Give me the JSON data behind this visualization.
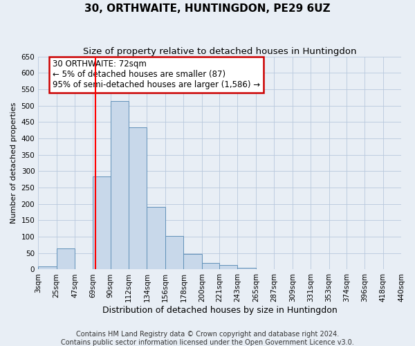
{
  "title": "30, ORTHWAITE, HUNTINGDON, PE29 6UZ",
  "subtitle": "Size of property relative to detached houses in Huntingdon",
  "xlabel": "Distribution of detached houses by size in Huntingdon",
  "ylabel": "Number of detached properties",
  "bin_edges": [
    3,
    25,
    47,
    69,
    90,
    112,
    134,
    156,
    178,
    200,
    221,
    243,
    265,
    287,
    309,
    331,
    353,
    374,
    396,
    418,
    440
  ],
  "bin_labels": [
    "3sqm",
    "25sqm",
    "47sqm",
    "69sqm",
    "90sqm",
    "112sqm",
    "134sqm",
    "156sqm",
    "178sqm",
    "200sqm",
    "221sqm",
    "243sqm",
    "265sqm",
    "287sqm",
    "309sqm",
    "331sqm",
    "353sqm",
    "374sqm",
    "396sqm",
    "418sqm",
    "440sqm"
  ],
  "counts": [
    10,
    65,
    0,
    283,
    515,
    433,
    192,
    103,
    47,
    20,
    13,
    5,
    2,
    1,
    0,
    1,
    0,
    1,
    0,
    2
  ],
  "bar_facecolor": "#c8d8ea",
  "bar_edgecolor": "#6090b8",
  "bar_linewidth": 0.7,
  "red_line_x": 72,
  "annotation_title": "30 ORTHWAITE: 72sqm",
  "annotation_line1": "← 5% of detached houses are smaller (87)",
  "annotation_line2": "95% of semi-detached houses are larger (1,586) →",
  "annotation_box_color": "#ffffff",
  "annotation_box_edgecolor": "#cc0000",
  "ylim": [
    0,
    650
  ],
  "yticks": [
    0,
    50,
    100,
    150,
    200,
    250,
    300,
    350,
    400,
    450,
    500,
    550,
    600,
    650
  ],
  "grid_color": "#b8c8dc",
  "background_color": "#e8eef5",
  "footer1": "Contains HM Land Registry data © Crown copyright and database right 2024.",
  "footer2": "Contains public sector information licensed under the Open Government Licence v3.0.",
  "title_fontsize": 11,
  "subtitle_fontsize": 9.5,
  "xlabel_fontsize": 9,
  "ylabel_fontsize": 8,
  "tick_fontsize": 7.5,
  "annotation_fontsize": 8.5,
  "footer_fontsize": 7
}
